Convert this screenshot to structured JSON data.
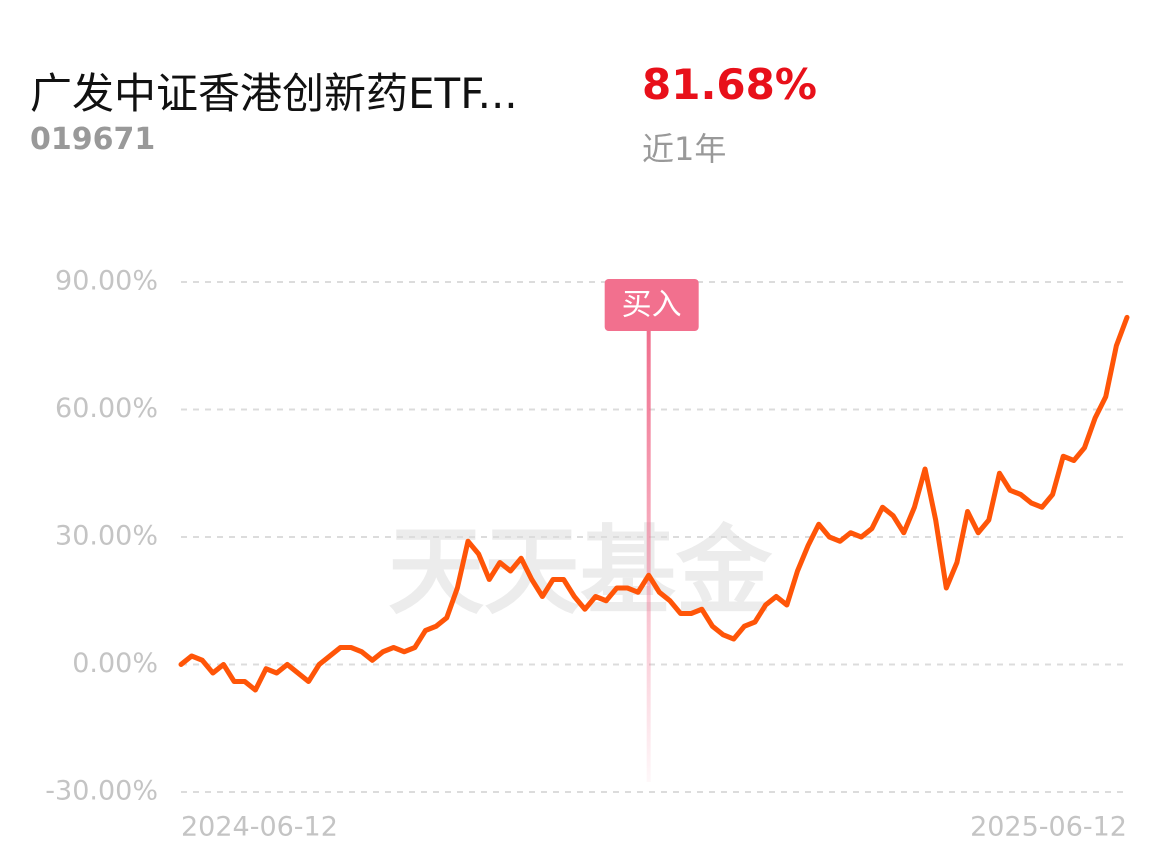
{
  "header": {
    "name": "广发中证香港创新药ETF...",
    "code": "019671",
    "return": "81.68%",
    "period": "近1年"
  },
  "chart_data": {
    "type": "line",
    "watermark": "天天基金",
    "categories": [
      "2024-06-12",
      null,
      null,
      null,
      null,
      null,
      null,
      null,
      null,
      null,
      null,
      null,
      null,
      null,
      null,
      null,
      null,
      null,
      null,
      null,
      null,
      null,
      null,
      null,
      null,
      null,
      null,
      null,
      null,
      null,
      null,
      null,
      null,
      null,
      null,
      null,
      null,
      null,
      null,
      null,
      null,
      null,
      null,
      null,
      null,
      null,
      null,
      null,
      null,
      null,
      null,
      null,
      null,
      null,
      null,
      null,
      null,
      null,
      null,
      null,
      null,
      null,
      null,
      null,
      null,
      null,
      null,
      null,
      null,
      null,
      null,
      null,
      null,
      null,
      null,
      null,
      null,
      null,
      null,
      null,
      null,
      null,
      null,
      null,
      null,
      null,
      null,
      null,
      null,
      "2025-06-12"
    ],
    "series": [
      {
        "color": "#ff5508",
        "values": [
          0,
          2,
          1,
          -2,
          0,
          -4,
          -4,
          -6,
          -1,
          -2,
          0,
          -2,
          -4,
          0,
          2,
          4,
          4,
          3,
          1,
          3,
          4,
          3,
          4,
          8,
          9,
          11,
          18,
          29,
          26,
          20,
          24,
          22,
          25,
          20,
          16,
          20,
          20,
          16,
          13,
          16,
          15,
          18,
          18,
          17,
          21,
          17,
          15,
          12,
          12,
          13,
          9,
          7,
          6,
          9,
          10,
          14,
          16,
          14,
          22,
          28,
          33,
          30,
          29,
          31,
          30,
          32,
          37,
          35,
          31,
          37,
          46,
          34,
          18,
          24,
          36,
          31,
          34,
          45,
          41,
          40,
          38,
          37,
          40,
          49,
          48,
          51,
          58,
          63,
          75,
          81.68
        ]
      }
    ],
    "annotations": [
      {
        "text": "买入",
        "index": 44
      }
    ],
    "ylim": [
      -30,
      90
    ],
    "yticks": [
      {
        "value": -30,
        "label": "-30.00%"
      },
      {
        "value": 0,
        "label": "0.00%"
      },
      {
        "value": 30,
        "label": "30.00%"
      },
      {
        "value": 60,
        "label": "60.00%"
      },
      {
        "value": 90,
        "label": "90.00%"
      }
    ],
    "grid": true
  }
}
